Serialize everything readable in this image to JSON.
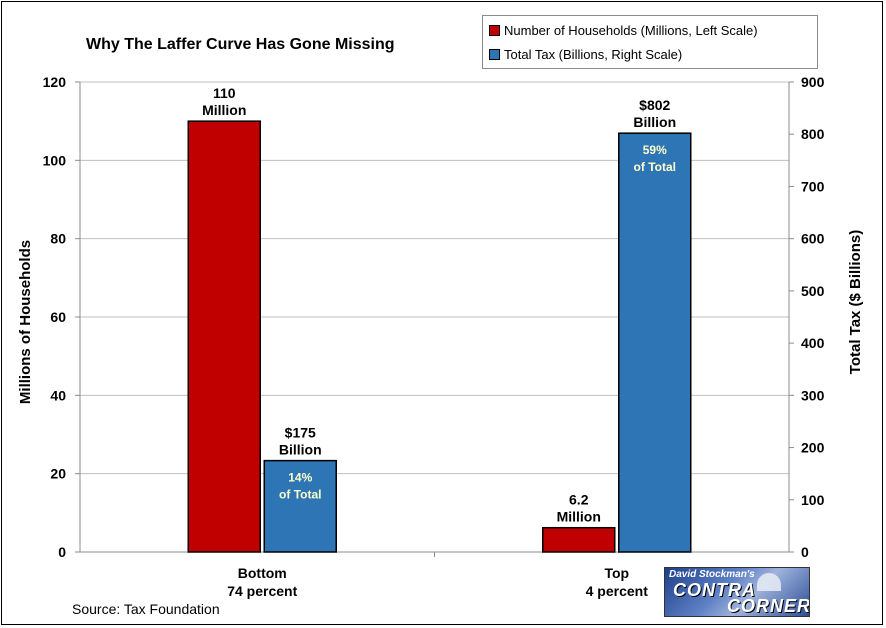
{
  "chart_data": {
    "type": "bar",
    "title": "Why The Laffer Curve Has Gone Missing",
    "source": "Source: Tax Foundation",
    "categories": [
      {
        "line1": "Bottom",
        "line2": "74 percent"
      },
      {
        "line1": "Top",
        "line2": "4 percent"
      }
    ],
    "series": [
      {
        "name": "Number of Households (Millions, Left Scale)",
        "axis": "left",
        "color": "#c00000",
        "values": [
          110,
          6.2
        ],
        "value_labels": [
          [
            "110",
            "Million"
          ],
          [
            "6.2",
            "Million"
          ]
        ],
        "inner_labels": [
          [
            "",
            ""
          ],
          [
            "",
            ""
          ]
        ]
      },
      {
        "name": "Total Tax (Billions, Right Scale)",
        "axis": "right",
        "color": "#2e75b6",
        "values": [
          175,
          802
        ],
        "value_labels": [
          [
            "$175",
            "Billion"
          ],
          [
            "$802",
            "Billion"
          ]
        ],
        "inner_labels": [
          [
            "14%",
            "of Total"
          ],
          [
            "59%",
            "of Total"
          ]
        ]
      }
    ],
    "ylabel_left": "Millions of Households",
    "ylabel_right": "Total Tax ($ Billions)",
    "ylim_left": [
      0,
      120
    ],
    "yticks_left": [
      0,
      20,
      40,
      60,
      80,
      100,
      120
    ],
    "ylim_right": [
      0,
      900
    ],
    "yticks_right": [
      0,
      100,
      200,
      300,
      400,
      500,
      600,
      700,
      800,
      900
    ],
    "grid": true,
    "legend_position": "top-right"
  },
  "logo": {
    "byline": "David Stockman's",
    "word1": "CONTRA",
    "word2": "CORNER"
  }
}
